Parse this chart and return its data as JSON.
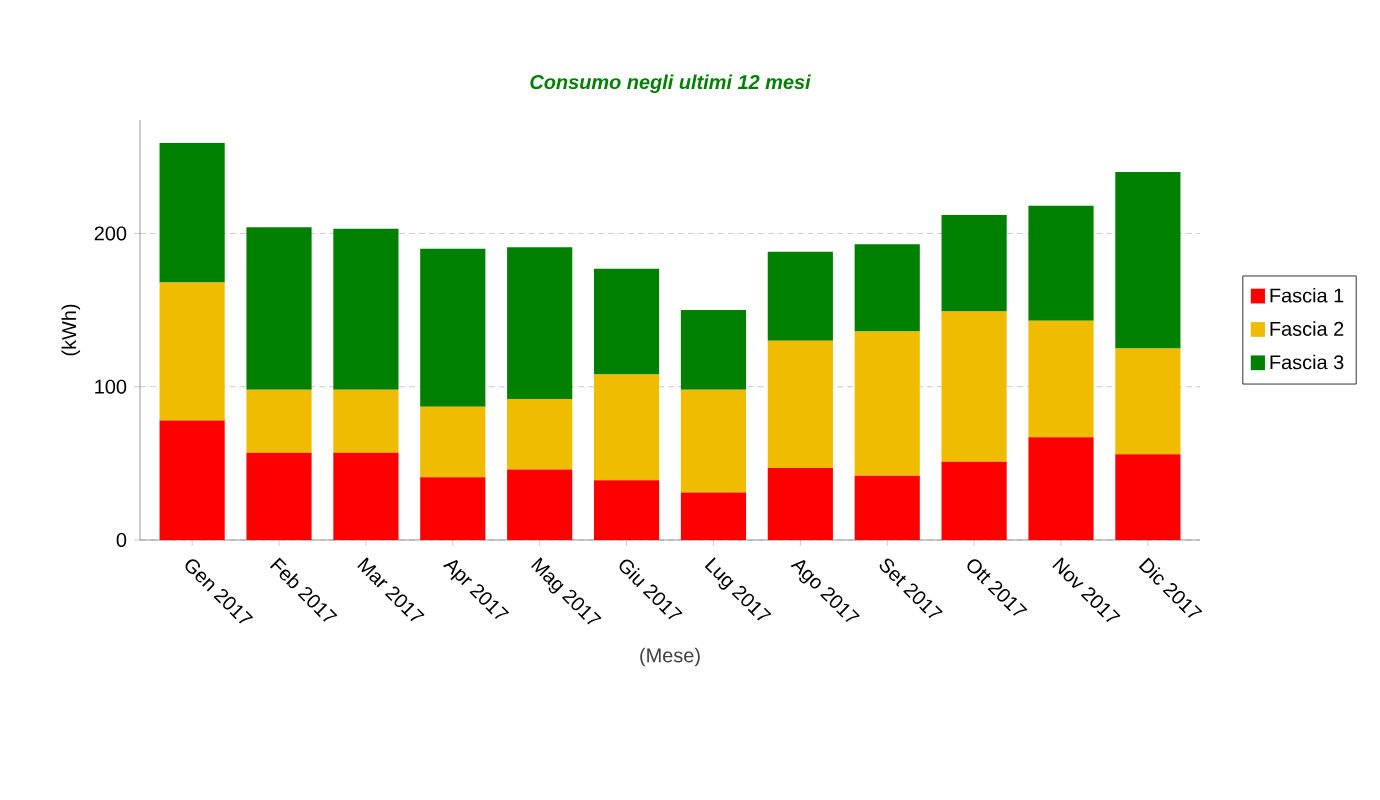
{
  "chart_data": {
    "type": "bar",
    "stacked": true,
    "title": "Consumo negli ultimi 12 mesi",
    "xlabel": "(Mese)",
    "ylabel": "(kWh)",
    "categories": [
      "Gen 2017",
      "Feb 2017",
      "Mar 2017",
      "Apr 2017",
      "Mag 2017",
      "Giu 2017",
      "Lug 2017",
      "Ago 2017",
      "Set 2017",
      "Ott 2017",
      "Nov 2017",
      "Dic 2017"
    ],
    "series": [
      {
        "name": "Fascia 1",
        "color": "#ff0000",
        "values": [
          78,
          57,
          57,
          41,
          46,
          39,
          31,
          47,
          42,
          51,
          67,
          56
        ]
      },
      {
        "name": "Fascia 2",
        "color": "#f0bc00",
        "values": [
          90,
          41,
          41,
          46,
          46,
          69,
          67,
          83,
          94,
          98,
          76,
          69
        ]
      },
      {
        "name": "Fascia 3",
        "color": "#008000",
        "values": [
          91,
          106,
          105,
          103,
          99,
          69,
          52,
          58,
          57,
          63,
          75,
          115
        ]
      }
    ],
    "ylim": [
      0,
      274
    ],
    "yticks": [
      0,
      100,
      200
    ],
    "grid": "y",
    "legend": "right"
  }
}
